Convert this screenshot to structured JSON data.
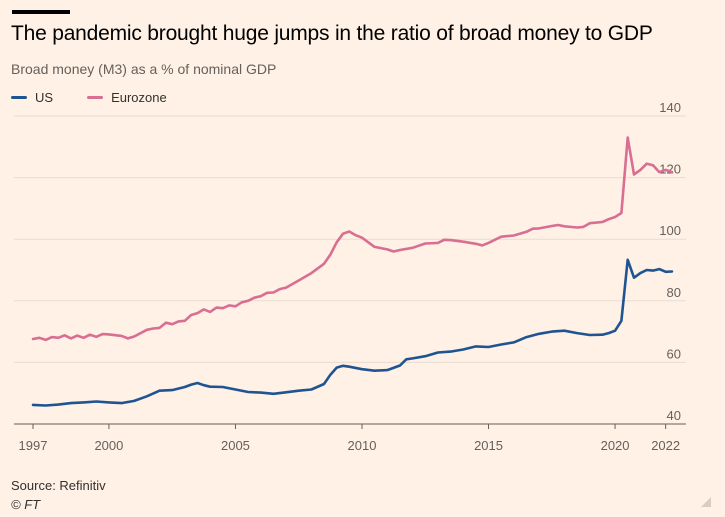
{
  "header": {
    "title": "The pandemic brought huge jumps in the ratio of broad money to GDP",
    "subtitle": "Broad money (M3) as a % of nominal GDP"
  },
  "footer": {
    "source": "Source: Refinitiv",
    "credit": "© FT"
  },
  "colors": {
    "background": "#fff1e5",
    "us": "#1f5493",
    "eurozone": "#d96e93",
    "grid": "#e8dcd2"
  },
  "chart_data": {
    "type": "line",
    "title": "The pandemic brought huge jumps in the ratio of broad money to GDP",
    "subtitle": "Broad money (M3) as a % of nominal GDP",
    "xlabel": "",
    "ylabel": "",
    "xlim": [
      1997,
      2022.25
    ],
    "ylim": [
      40,
      140
    ],
    "yticks": [
      40,
      60,
      80,
      100,
      120,
      140
    ],
    "yaxis_position": "right",
    "xticks": [
      {
        "value": 1997,
        "label": "1997"
      },
      {
        "value": 2000,
        "label": "2000"
      },
      {
        "value": 2005,
        "label": "2005"
      },
      {
        "value": 2010,
        "label": "2010"
      },
      {
        "value": 2015,
        "label": "2015"
      },
      {
        "value": 2020,
        "label": "2020"
      },
      {
        "value": 2022,
        "label": "2022"
      }
    ],
    "grid": true,
    "legend": "top-left",
    "series": [
      {
        "name": "US",
        "color": "#1f5493",
        "points": [
          [
            1997,
            46.2
          ],
          [
            1997.5,
            46
          ],
          [
            1998,
            46.3
          ],
          [
            1998.5,
            46.8
          ],
          [
            1999,
            47
          ],
          [
            1999.5,
            47.3
          ],
          [
            2000,
            47
          ],
          [
            2000.5,
            46.8
          ],
          [
            2001,
            47.5
          ],
          [
            2001.5,
            49
          ],
          [
            2002,
            50.8
          ],
          [
            2002.5,
            51
          ],
          [
            2003,
            52
          ],
          [
            2003.25,
            52.8
          ],
          [
            2003.5,
            53.3
          ],
          [
            2003.75,
            52.6
          ],
          [
            2004,
            52.1
          ],
          [
            2004.5,
            52
          ],
          [
            2005,
            51.2
          ],
          [
            2005.5,
            50.4
          ],
          [
            2006,
            50.2
          ],
          [
            2006.5,
            49.8
          ],
          [
            2007,
            50.3
          ],
          [
            2007.5,
            50.8
          ],
          [
            2008,
            51.2
          ],
          [
            2008.5,
            53
          ],
          [
            2008.75,
            56
          ],
          [
            2009,
            58.3
          ],
          [
            2009.25,
            58.9
          ],
          [
            2009.5,
            58.6
          ],
          [
            2010,
            57.8
          ],
          [
            2010.5,
            57.3
          ],
          [
            2011,
            57.5
          ],
          [
            2011.5,
            59
          ],
          [
            2011.75,
            61
          ],
          [
            2012,
            61.3
          ],
          [
            2012.5,
            62
          ],
          [
            2013,
            63.2
          ],
          [
            2013.5,
            63.5
          ],
          [
            2014,
            64.2
          ],
          [
            2014.5,
            65.2
          ],
          [
            2015,
            65
          ],
          [
            2015.5,
            65.8
          ],
          [
            2016,
            66.5
          ],
          [
            2016.5,
            68.2
          ],
          [
            2017,
            69.3
          ],
          [
            2017.5,
            70
          ],
          [
            2018,
            70.3
          ],
          [
            2018.5,
            69.5
          ],
          [
            2019,
            68.9
          ],
          [
            2019.5,
            69
          ],
          [
            2019.75,
            69.5
          ],
          [
            2020,
            70.3
          ],
          [
            2020.25,
            73.5
          ],
          [
            2020.5,
            93.3
          ],
          [
            2020.75,
            87.5
          ],
          [
            2021,
            89
          ],
          [
            2021.25,
            90
          ],
          [
            2021.5,
            89.8
          ],
          [
            2021.75,
            90.3
          ],
          [
            2022,
            89.4
          ],
          [
            2022.25,
            89.5
          ]
        ]
      },
      {
        "name": "Eurozone",
        "color": "#d96e93",
        "points": [
          [
            1997,
            67.6
          ],
          [
            1997.25,
            68
          ],
          [
            1997.5,
            67.3
          ],
          [
            1997.75,
            68.2
          ],
          [
            1998,
            68
          ],
          [
            1998.25,
            68.8
          ],
          [
            1998.5,
            67.8
          ],
          [
            1998.75,
            68.7
          ],
          [
            1999,
            68
          ],
          [
            1999.25,
            69
          ],
          [
            1999.5,
            68.3
          ],
          [
            1999.75,
            69.2
          ],
          [
            2000,
            69.1
          ],
          [
            2000.5,
            68.6
          ],
          [
            2000.75,
            67.8
          ],
          [
            2001,
            68.4
          ],
          [
            2001.5,
            70.6
          ],
          [
            2001.75,
            71
          ],
          [
            2002,
            71.2
          ],
          [
            2002.25,
            72.9
          ],
          [
            2002.5,
            72.4
          ],
          [
            2002.75,
            73.3
          ],
          [
            2003,
            73.5
          ],
          [
            2003.25,
            75.4
          ],
          [
            2003.5,
            76
          ],
          [
            2003.75,
            77.2
          ],
          [
            2004,
            76.4
          ],
          [
            2004.25,
            77.8
          ],
          [
            2004.5,
            77.6
          ],
          [
            2004.75,
            78.5
          ],
          [
            2005,
            78.2
          ],
          [
            2005.25,
            79.5
          ],
          [
            2005.5,
            80
          ],
          [
            2005.75,
            81
          ],
          [
            2006,
            81.5
          ],
          [
            2006.25,
            82.6
          ],
          [
            2006.5,
            82.7
          ],
          [
            2006.75,
            83.8
          ],
          [
            2007,
            84.3
          ],
          [
            2007.5,
            86.6
          ],
          [
            2008,
            89
          ],
          [
            2008.5,
            92
          ],
          [
            2008.75,
            95
          ],
          [
            2009,
            99
          ],
          [
            2009.25,
            101.8
          ],
          [
            2009.5,
            102.5
          ],
          [
            2009.75,
            101.3
          ],
          [
            2010,
            100.5
          ],
          [
            2010.5,
            97.5
          ],
          [
            2011,
            96.7
          ],
          [
            2011.25,
            96
          ],
          [
            2011.5,
            96.5
          ],
          [
            2012,
            97.2
          ],
          [
            2012.5,
            98.6
          ],
          [
            2013,
            98.8
          ],
          [
            2013.25,
            99.8
          ],
          [
            2013.5,
            99.7
          ],
          [
            2014,
            99.2
          ],
          [
            2014.5,
            98.5
          ],
          [
            2014.75,
            98
          ],
          [
            2015,
            98.8
          ],
          [
            2015.5,
            100.8
          ],
          [
            2016,
            101.2
          ],
          [
            2016.5,
            102.4
          ],
          [
            2016.75,
            103.4
          ],
          [
            2017,
            103.5
          ],
          [
            2017.5,
            104.3
          ],
          [
            2017.75,
            104.6
          ],
          [
            2018,
            104.2
          ],
          [
            2018.5,
            103.8
          ],
          [
            2018.75,
            104
          ],
          [
            2019,
            105.2
          ],
          [
            2019.5,
            105.6
          ],
          [
            2019.75,
            106.5
          ],
          [
            2020,
            107.2
          ],
          [
            2020.25,
            108.5
          ],
          [
            2020.5,
            133
          ],
          [
            2020.75,
            121
          ],
          [
            2021,
            122.5
          ],
          [
            2021.25,
            124.5
          ],
          [
            2021.5,
            124
          ],
          [
            2021.75,
            121.8
          ],
          [
            2022,
            122.5
          ],
          [
            2022.25,
            121.8
          ]
        ]
      }
    ]
  }
}
